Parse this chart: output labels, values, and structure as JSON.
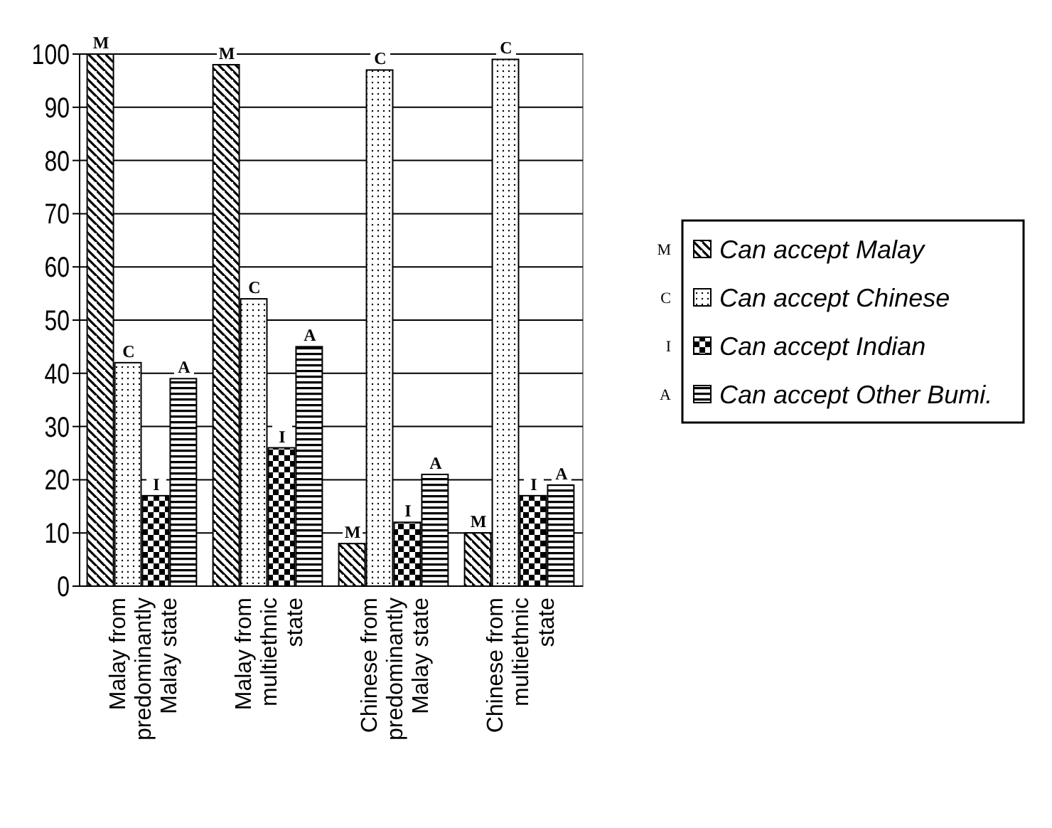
{
  "chart_data": {
    "type": "bar",
    "categories": [
      "Malay from predominantly Malay state",
      "Malay from multiethnic state",
      "Chinese from predominantly Malay state",
      "Chinese from multiethnic state"
    ],
    "series": [
      {
        "name": "Can accept Malay",
        "color": "#000000",
        "values": [
          100,
          98,
          8,
          10
        ],
        "value_labels": [
          "M",
          "M",
          "M",
          "M"
        ]
      },
      {
        "name": "Can accept Chinese",
        "color": "#000000",
        "values": [
          42,
          54,
          97,
          99
        ],
        "value_labels": [
          "C",
          "C",
          "C",
          "C"
        ]
      },
      {
        "name": "Can accept Indian",
        "color": "#000000",
        "values": [
          17,
          26,
          12,
          17
        ],
        "value_labels": [
          "I",
          "I",
          "I",
          "I"
        ]
      },
      {
        "name": "Can accept Other Bumi.",
        "color": "#000000",
        "values": [
          39,
          45,
          21,
          19
        ],
        "value_labels": [
          "A",
          "A",
          "A",
          "A"
        ]
      }
    ],
    "ylim": [
      0,
      100
    ],
    "yticks": [
      0,
      10,
      20,
      30,
      40,
      50,
      60,
      70,
      80,
      90,
      100
    ],
    "grid": "y",
    "legend": "right"
  }
}
